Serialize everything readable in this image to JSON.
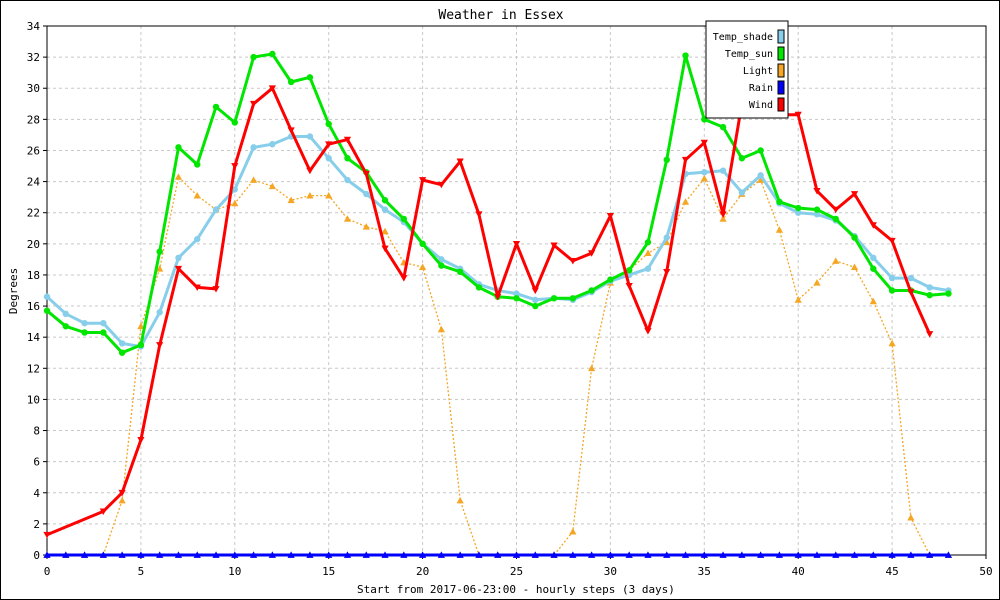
{
  "chart_data": {
    "type": "line",
    "title": "Weather in Essex",
    "xlabel": "Start from 2017-06-23:00 - hourly steps (3 days)",
    "ylabel": "Degrees",
    "xlim": [
      0,
      50
    ],
    "ylim": [
      0,
      34
    ],
    "x_ticks": [
      0,
      5,
      10,
      15,
      20,
      25,
      30,
      35,
      40,
      45,
      50
    ],
    "y_ticks": [
      0,
      2,
      4,
      6,
      8,
      10,
      12,
      14,
      16,
      18,
      20,
      22,
      24,
      26,
      28,
      30,
      32,
      34
    ],
    "grid": true,
    "legend_position": "top-right",
    "series": [
      {
        "name": "Temp_shade",
        "color": "#87ceeb",
        "marker": "circle",
        "line": "solid",
        "x": [
          0,
          1,
          2,
          3,
          4,
          5,
          6,
          7,
          8,
          9,
          10,
          11,
          12,
          13,
          14,
          15,
          16,
          17,
          18,
          19,
          20,
          21,
          22,
          23,
          24,
          25,
          26,
          27,
          28,
          29,
          30,
          31,
          32,
          33,
          34,
          35,
          36,
          37,
          38,
          39,
          40,
          41,
          42,
          43,
          44,
          45,
          46,
          47,
          48
        ],
        "values": [
          16.6,
          15.5,
          14.9,
          14.9,
          13.6,
          13.4,
          15.6,
          19.1,
          20.3,
          22.2,
          23.5,
          26.2,
          26.4,
          26.9,
          26.9,
          25.5,
          24.1,
          23.2,
          22.2,
          21.4,
          20.0,
          19.0,
          18.4,
          17.4,
          17.0,
          16.8,
          16.4,
          16.5,
          16.4,
          16.9,
          17.6,
          18.0,
          18.4,
          20.4,
          24.5,
          24.6,
          24.7,
          23.3,
          24.4,
          22.6,
          22.0,
          21.9,
          21.5,
          20.5,
          19.1,
          17.8,
          17.8,
          17.2,
          17.0
        ]
      },
      {
        "name": "Temp_sun",
        "color": "#00e600",
        "marker": "circle",
        "line": "solid",
        "x": [
          0,
          1,
          2,
          3,
          4,
          5,
          6,
          7,
          8,
          9,
          10,
          11,
          12,
          13,
          14,
          15,
          16,
          17,
          18,
          19,
          20,
          21,
          22,
          23,
          24,
          25,
          26,
          27,
          28,
          29,
          30,
          31,
          32,
          33,
          34,
          35,
          36,
          37,
          38,
          39,
          40,
          41,
          42,
          43,
          44,
          45,
          46,
          47,
          48
        ],
        "values": [
          15.7,
          14.7,
          14.3,
          14.3,
          13.0,
          13.5,
          19.5,
          26.2,
          25.1,
          28.8,
          27.8,
          32.0,
          32.2,
          30.4,
          30.7,
          27.7,
          25.5,
          24.6,
          22.8,
          21.6,
          20.0,
          18.6,
          18.2,
          17.2,
          16.6,
          16.5,
          16.0,
          16.5,
          16.5,
          17.0,
          17.7,
          18.3,
          20.1,
          25.4,
          32.1,
          28.0,
          27.5,
          25.5,
          26.0,
          22.7,
          22.3,
          22.2,
          21.6,
          20.4,
          18.4,
          17.0,
          17.0,
          16.7,
          16.8
        ]
      },
      {
        "name": "Light",
        "color": "#f5a623",
        "marker": "triangle-up",
        "line": "dotted",
        "x": [
          0,
          1,
          2,
          3,
          4,
          5,
          6,
          7,
          8,
          9,
          10,
          11,
          12,
          13,
          14,
          15,
          16,
          17,
          18,
          19,
          20,
          21,
          22,
          23,
          24,
          25,
          26,
          27,
          28,
          29,
          30,
          31,
          32,
          33,
          34,
          35,
          36,
          37,
          38,
          39,
          40,
          41,
          42,
          43,
          44,
          45,
          46,
          47,
          48
        ],
        "values": [
          0,
          0,
          0,
          0,
          3.5,
          14.7,
          18.4,
          24.3,
          23.1,
          22.2,
          22.6,
          24.1,
          23.7,
          22.8,
          23.1,
          23.1,
          21.6,
          21.1,
          20.8,
          18.8,
          18.5,
          14.5,
          3.5,
          0,
          0,
          0,
          0,
          0,
          1.5,
          12.0,
          17.5,
          18.3,
          19.4,
          20.1,
          22.7,
          24.2,
          21.6,
          23.2,
          24.1,
          20.9,
          16.4,
          17.5,
          18.9,
          18.5,
          16.3,
          13.6,
          2.4,
          0,
          0
        ]
      },
      {
        "name": "Rain",
        "color": "#0000ff",
        "marker": "triangle-up",
        "line": "solid",
        "x": [
          0,
          1,
          2,
          3,
          4,
          5,
          6,
          7,
          8,
          9,
          10,
          11,
          12,
          13,
          14,
          15,
          16,
          17,
          18,
          19,
          20,
          21,
          22,
          23,
          24,
          25,
          26,
          27,
          28,
          29,
          30,
          31,
          32,
          33,
          34,
          35,
          36,
          37,
          38,
          39,
          40,
          41,
          42,
          43,
          44,
          45,
          46,
          47,
          48
        ],
        "values": [
          0,
          0,
          0,
          0,
          0,
          0,
          0,
          0,
          0,
          0,
          0,
          0,
          0,
          0,
          0,
          0,
          0,
          0,
          0,
          0,
          0,
          0,
          0,
          0,
          0,
          0,
          0,
          0,
          0,
          0,
          0,
          0,
          0,
          0,
          0,
          0,
          0,
          0,
          0,
          0,
          0,
          0,
          0,
          0,
          0,
          0,
          0,
          0,
          0
        ]
      },
      {
        "name": "Wind",
        "color": "#ff0000",
        "marker": "triangle-down",
        "line": "solid",
        "x": [
          0,
          3,
          4,
          5,
          6,
          7,
          8,
          9,
          10,
          11,
          12,
          13,
          14,
          15,
          16,
          17,
          18,
          19,
          20,
          21,
          22,
          23,
          24,
          25,
          26,
          27,
          28,
          29,
          30,
          31,
          32,
          33,
          34,
          35,
          36,
          37,
          38,
          39,
          40,
          41,
          42,
          43,
          44,
          45,
          46,
          47
        ],
        "values": [
          1.3,
          2.8,
          4.0,
          7.4,
          13.5,
          18.4,
          17.2,
          17.1,
          25.0,
          29.0,
          30.0,
          27.3,
          24.7,
          26.4,
          26.7,
          24.5,
          19.7,
          17.8,
          24.1,
          23.8,
          25.3,
          21.9,
          16.6,
          20.0,
          17.0,
          19.9,
          18.9,
          19.4,
          21.8,
          17.3,
          14.4,
          18.2,
          25.4,
          26.5,
          21.9,
          29.0,
          29.5,
          28.3,
          28.3,
          23.4,
          22.2,
          23.2,
          21.2,
          20.2,
          16.9,
          14.2
        ]
      }
    ]
  }
}
